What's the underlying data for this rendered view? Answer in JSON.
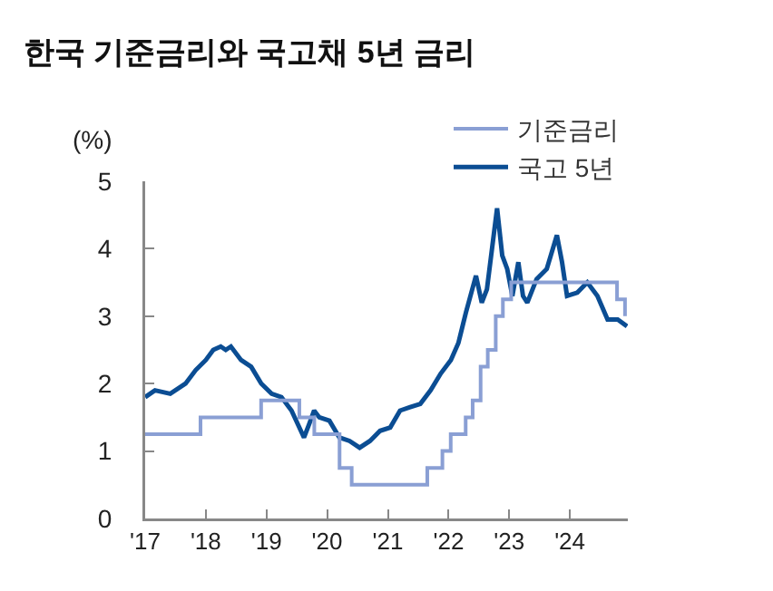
{
  "chart_data": {
    "type": "line",
    "title": "한국 기준금리와 국고채 5년 금리",
    "ylabel": "(%)",
    "xlim": [
      "2017-01-01",
      "2024-12-15"
    ],
    "xticks": [
      {
        "value": "2017-01-01",
        "label": "'17"
      },
      {
        "value": "2018-01-01",
        "label": "'18"
      },
      {
        "value": "2019-01-01",
        "label": "'19"
      },
      {
        "value": "2020-01-01",
        "label": "'20"
      },
      {
        "value": "2021-01-01",
        "label": "'21"
      },
      {
        "value": "2022-01-01",
        "label": "'22"
      },
      {
        "value": "2023-01-01",
        "label": "'23"
      },
      {
        "value": "2024-01-01",
        "label": "'24"
      }
    ],
    "ylim": [
      0,
      5
    ],
    "yticks": [
      0,
      1,
      2,
      3,
      4,
      5
    ],
    "grid": false,
    "legend": "top right",
    "series": [
      {
        "name": "기준금리",
        "type": "step",
        "color": "#8a9fd4",
        "x": [
          "2017-01-01",
          "2017-11-30",
          "2018-11-30",
          "2019-07-18",
          "2019-10-16",
          "2020-03-16",
          "2020-05-28",
          "2021-08-26",
          "2021-11-25",
          "2022-01-14",
          "2022-04-14",
          "2022-05-26",
          "2022-07-13",
          "2022-08-25",
          "2022-10-12",
          "2022-11-24",
          "2023-01-13",
          "2024-10-11",
          "2024-11-28"
        ],
        "values": [
          1.25,
          1.5,
          1.75,
          1.5,
          1.25,
          0.75,
          0.5,
          0.75,
          1.0,
          1.25,
          1.5,
          1.75,
          2.25,
          2.5,
          3.0,
          3.25,
          3.5,
          3.25,
          3.0
        ]
      },
      {
        "name": "국고 5년",
        "type": "line",
        "color": "#0b4d93",
        "x": [
          "2017-01-01",
          "2017-03-01",
          "2017-06-01",
          "2017-09-01",
          "2017-11-01",
          "2018-01-01",
          "2018-02-15",
          "2018-04-01",
          "2018-05-01",
          "2018-06-01",
          "2018-08-01",
          "2018-10-01",
          "2018-12-01",
          "2019-02-01",
          "2019-04-01",
          "2019-06-01",
          "2019-08-15",
          "2019-09-15",
          "2019-10-15",
          "2019-11-15",
          "2020-01-15",
          "2020-03-15",
          "2020-05-15",
          "2020-07-15",
          "2020-09-15",
          "2020-11-15",
          "2021-01-15",
          "2021-03-15",
          "2021-05-15",
          "2021-07-15",
          "2021-09-15",
          "2021-11-15",
          "2022-01-15",
          "2022-03-01",
          "2022-04-15",
          "2022-06-15",
          "2022-07-20",
          "2022-08-20",
          "2022-10-20",
          "2022-11-20",
          "2022-12-20",
          "2023-01-20",
          "2023-02-25",
          "2023-03-25",
          "2023-04-20",
          "2023-06-15",
          "2023-08-15",
          "2023-10-15",
          "2023-11-15",
          "2023-12-15",
          "2024-02-15",
          "2024-04-15",
          "2024-06-15",
          "2024-08-15",
          "2024-10-15",
          "2024-12-10"
        ],
        "values": [
          1.8,
          1.9,
          1.85,
          2.0,
          2.2,
          2.35,
          2.5,
          2.55,
          2.5,
          2.55,
          2.35,
          2.25,
          2.0,
          1.85,
          1.8,
          1.6,
          1.2,
          1.4,
          1.6,
          1.5,
          1.45,
          1.2,
          1.15,
          1.05,
          1.15,
          1.3,
          1.35,
          1.6,
          1.65,
          1.7,
          1.9,
          2.15,
          2.35,
          2.6,
          3.05,
          3.6,
          3.2,
          3.4,
          4.6,
          3.9,
          3.7,
          3.3,
          3.8,
          3.3,
          3.2,
          3.55,
          3.7,
          4.2,
          3.8,
          3.3,
          3.35,
          3.5,
          3.3,
          2.95,
          2.95,
          2.85
        ]
      }
    ]
  }
}
